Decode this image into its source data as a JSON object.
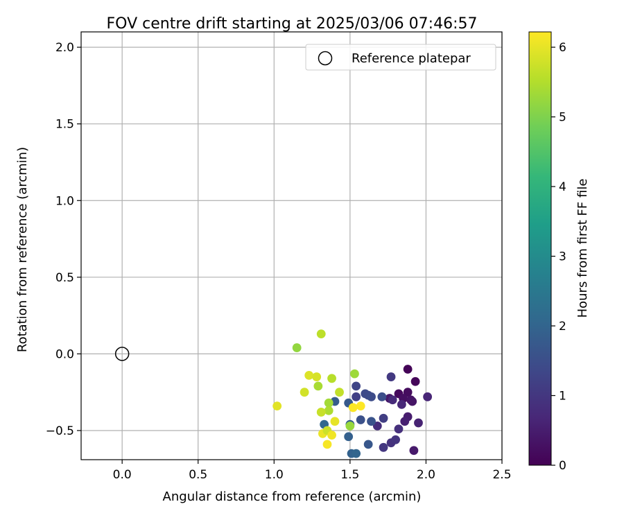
{
  "chart_data": {
    "type": "scatter",
    "title": "FOV centre drift starting at 2025/03/06 07:46:57",
    "xlabel": "Angular distance from reference (arcmin)",
    "ylabel": "Rotation from reference (arcmin)",
    "xlim": [
      -0.27,
      2.5
    ],
    "ylim": [
      -0.69,
      2.1
    ],
    "xticks": [
      "0.0",
      "0.5",
      "1.0",
      "1.5",
      "2.0",
      "2.5"
    ],
    "xtick_values": [
      0,
      0.5,
      1.0,
      1.5,
      2.0,
      2.5
    ],
    "yticks": [
      "−0.5",
      "0.0",
      "0.5",
      "1.0",
      "1.5",
      "2.0"
    ],
    "ytick_values": [
      -0.5,
      0,
      0.5,
      1.0,
      1.5,
      2.0
    ],
    "grid": true,
    "legend": {
      "position": "top-right",
      "entries": [
        {
          "label": "Reference platepar",
          "marker": "open-circle"
        }
      ]
    },
    "reference_point": {
      "x": 0.0,
      "y": 0.0
    },
    "colorbar": {
      "label": "Hours from first FF file",
      "colormap": "viridis",
      "range": [
        0,
        6.22
      ],
      "ticks": [
        "0",
        "1",
        "2",
        "3",
        "4",
        "5",
        "6"
      ],
      "tick_values": [
        0,
        1,
        2,
        3,
        4,
        5,
        6
      ],
      "stops": [
        "#440154",
        "#482878",
        "#3e4989",
        "#31688e",
        "#26828e",
        "#1f9e89",
        "#35b779",
        "#6ece58",
        "#b5de2b",
        "#fde725"
      ]
    },
    "points": [
      {
        "x": 1.88,
        "y": -0.1,
        "c": 0.05
      },
      {
        "x": 1.93,
        "y": -0.18,
        "c": 0.1
      },
      {
        "x": 1.82,
        "y": -0.26,
        "c": 0.15
      },
      {
        "x": 1.88,
        "y": -0.25,
        "c": 0.2
      },
      {
        "x": 1.85,
        "y": -0.29,
        "c": 0.25
      },
      {
        "x": 1.9,
        "y": -0.3,
        "c": 0.3
      },
      {
        "x": 1.91,
        "y": -0.31,
        "c": 0.35
      },
      {
        "x": 1.76,
        "y": -0.29,
        "c": 0.4
      },
      {
        "x": 1.92,
        "y": -0.63,
        "c": 0.45
      },
      {
        "x": 1.88,
        "y": -0.41,
        "c": 0.5
      },
      {
        "x": 1.86,
        "y": -0.44,
        "c": 0.55
      },
      {
        "x": 1.95,
        "y": -0.45,
        "c": 0.6
      },
      {
        "x": 2.01,
        "y": -0.28,
        "c": 0.65
      },
      {
        "x": 1.84,
        "y": -0.33,
        "c": 0.7
      },
      {
        "x": 1.78,
        "y": -0.3,
        "c": 0.75
      },
      {
        "x": 1.68,
        "y": -0.47,
        "c": 0.8
      },
      {
        "x": 1.82,
        "y": -0.49,
        "c": 0.85
      },
      {
        "x": 1.77,
        "y": -0.58,
        "c": 0.9
      },
      {
        "x": 1.8,
        "y": -0.56,
        "c": 0.95
      },
      {
        "x": 1.72,
        "y": -0.61,
        "c": 1.0
      },
      {
        "x": 1.77,
        "y": -0.15,
        "c": 1.05
      },
      {
        "x": 1.72,
        "y": -0.42,
        "c": 1.15
      },
      {
        "x": 1.54,
        "y": -0.28,
        "c": 1.2
      },
      {
        "x": 1.54,
        "y": -0.21,
        "c": 1.3
      },
      {
        "x": 1.62,
        "y": -0.27,
        "c": 1.35
      },
      {
        "x": 1.6,
        "y": -0.26,
        "c": 1.4
      },
      {
        "x": 1.64,
        "y": -0.28,
        "c": 1.45
      },
      {
        "x": 1.71,
        "y": -0.28,
        "c": 1.5
      },
      {
        "x": 1.57,
        "y": -0.43,
        "c": 1.55
      },
      {
        "x": 1.64,
        "y": -0.44,
        "c": 1.6
      },
      {
        "x": 1.62,
        "y": -0.59,
        "c": 1.7
      },
      {
        "x": 1.49,
        "y": -0.32,
        "c": 1.75
      },
      {
        "x": 1.4,
        "y": -0.31,
        "c": 1.8
      },
      {
        "x": 1.5,
        "y": -0.46,
        "c": 1.85
      },
      {
        "x": 1.49,
        "y": -0.54,
        "c": 1.9
      },
      {
        "x": 1.51,
        "y": -0.65,
        "c": 1.95
      },
      {
        "x": 1.54,
        "y": -0.65,
        "c": 2.0
      },
      {
        "x": 1.33,
        "y": -0.46,
        "c": 2.05
      },
      {
        "x": 1.15,
        "y": 0.04,
        "c": 5.2
      },
      {
        "x": 1.53,
        "y": -0.13,
        "c": 5.3
      },
      {
        "x": 1.29,
        "y": -0.21,
        "c": 5.4
      },
      {
        "x": 1.31,
        "y": 0.13,
        "c": 5.6
      },
      {
        "x": 1.38,
        "y": -0.16,
        "c": 5.55
      },
      {
        "x": 1.43,
        "y": -0.25,
        "c": 5.65
      },
      {
        "x": 1.36,
        "y": -0.32,
        "c": 5.35
      },
      {
        "x": 1.36,
        "y": -0.37,
        "c": 5.45
      },
      {
        "x": 1.31,
        "y": -0.38,
        "c": 5.7
      },
      {
        "x": 1.5,
        "y": -0.47,
        "c": 5.25
      },
      {
        "x": 1.2,
        "y": -0.25,
        "c": 5.8
      },
      {
        "x": 1.23,
        "y": -0.14,
        "c": 5.9
      },
      {
        "x": 1.28,
        "y": -0.15,
        "c": 5.85
      },
      {
        "x": 1.02,
        "y": -0.34,
        "c": 5.95
      },
      {
        "x": 1.4,
        "y": -0.44,
        "c": 6.0
      },
      {
        "x": 1.32,
        "y": -0.52,
        "c": 6.05
      },
      {
        "x": 1.35,
        "y": -0.5,
        "c": 5.75
      },
      {
        "x": 1.38,
        "y": -0.53,
        "c": 6.1
      },
      {
        "x": 1.35,
        "y": -0.59,
        "c": 6.15
      },
      {
        "x": 1.52,
        "y": -0.35,
        "c": 6.2
      },
      {
        "x": 1.57,
        "y": -0.34,
        "c": 6.22
      }
    ]
  }
}
